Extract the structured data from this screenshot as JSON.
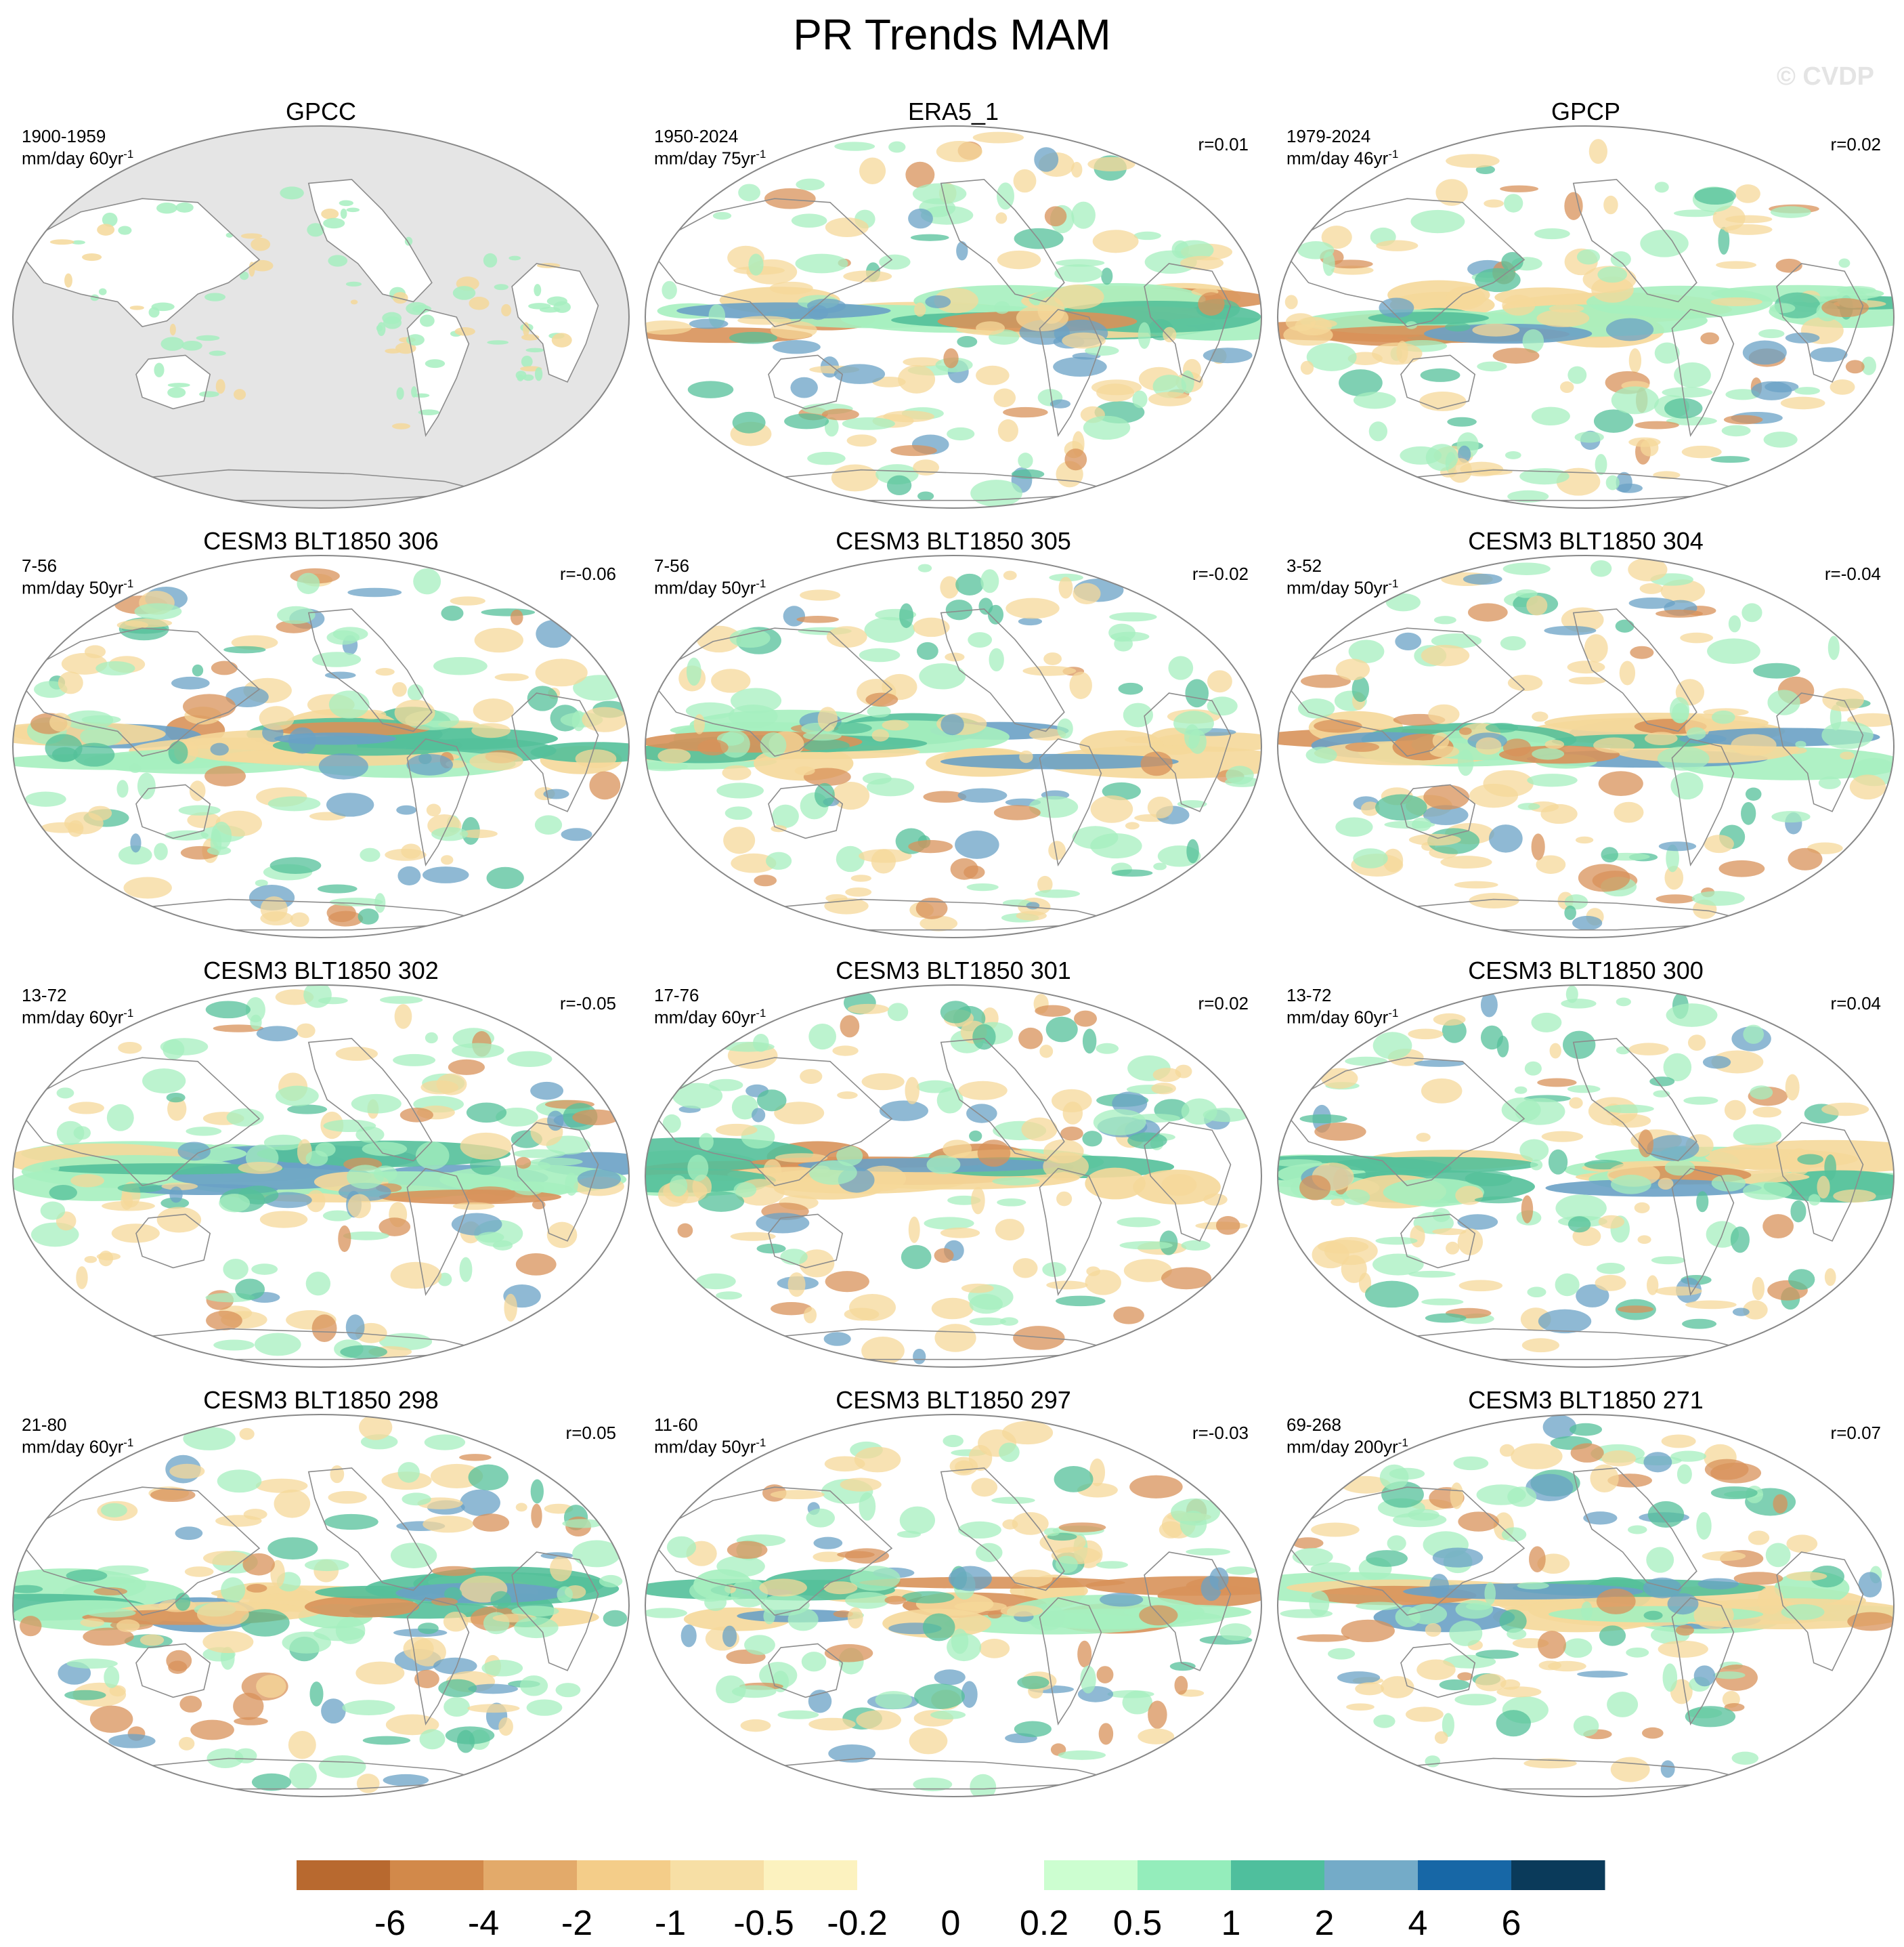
{
  "title": "PR Trends MAM",
  "watermark": "© CVDP",
  "colors": {
    "ocean_masked": "#e5e5e5",
    "coast": "#8c8c8c",
    "border": "#888888",
    "brown": "#d8925a",
    "tan": "#f5d89a",
    "green": "#a6efbf",
    "teal": "#54c09a",
    "blue": "#6aa1c5",
    "darkblue": "#0c62a6"
  },
  "colorbar": {
    "colors": [
      "#b8692f",
      "#d2894a",
      "#e3aa6a",
      "#f4cd89",
      "#f7dfa5",
      "#fcf2bf",
      "#ffffff",
      "#ffffff",
      "#ccfed0",
      "#94edbb",
      "#4fbf9d",
      "#74abc8",
      "#1767a6",
      "#0a3a5a"
    ],
    "labels": [
      "-6",
      "-4",
      "-2",
      "-1",
      "-0.5",
      "-0.2",
      "0",
      "0.2",
      "0.5",
      "1",
      "2",
      "4",
      "6"
    ]
  },
  "panels": [
    {
      "title": "GPCC",
      "period": "1900-1959",
      "units": "mm/day 60yr",
      "units_exp": "-1",
      "corr": "",
      "masked": true,
      "seed": 3
    },
    {
      "title": "ERA5_1",
      "period": "1950-2024",
      "units": "mm/day 75yr",
      "units_exp": "-1",
      "corr": "r=0.01",
      "masked": false,
      "seed": 11
    },
    {
      "title": "GPCP",
      "period": "1979-2024",
      "units": "mm/day 46yr",
      "units_exp": "-1",
      "corr": "r=0.02",
      "masked": false,
      "seed": 19
    },
    {
      "title": "CESM3 BLT1850 306",
      "period": "7-56",
      "units": "mm/day 50yr",
      "units_exp": "-1",
      "corr": "r=-0.06",
      "masked": false,
      "seed": 27
    },
    {
      "title": "CESM3 BLT1850 305",
      "period": "7-56",
      "units": "mm/day 50yr",
      "units_exp": "-1",
      "corr": "r=-0.02",
      "masked": false,
      "seed": 35
    },
    {
      "title": "CESM3 BLT1850 304",
      "period": "3-52",
      "units": "mm/day 50yr",
      "units_exp": "-1",
      "corr": "r=-0.04",
      "masked": false,
      "seed": 43
    },
    {
      "title": "CESM3 BLT1850 302",
      "period": "13-72",
      "units": "mm/day 60yr",
      "units_exp": "-1",
      "corr": "r=-0.05",
      "masked": false,
      "seed": 51
    },
    {
      "title": "CESM3 BLT1850 301",
      "period": "17-76",
      "units": "mm/day 60yr",
      "units_exp": "-1",
      "corr": "r=0.02",
      "masked": false,
      "seed": 59
    },
    {
      "title": "CESM3 BLT1850 300",
      "period": "13-72",
      "units": "mm/day 60yr",
      "units_exp": "-1",
      "corr": "r=0.04",
      "masked": false,
      "seed": 67
    },
    {
      "title": "CESM3 BLT1850 298",
      "period": "21-80",
      "units": "mm/day 60yr",
      "units_exp": "-1",
      "corr": "r=0.05",
      "masked": false,
      "seed": 75
    },
    {
      "title": "CESM3 BLT1850 297",
      "period": "11-60",
      "units": "mm/day 50yr",
      "units_exp": "-1",
      "corr": "r=-0.03",
      "masked": false,
      "seed": 83
    },
    {
      "title": "CESM3 BLT1850 271",
      "period": "69-268",
      "units": "mm/day 200yr",
      "units_exp": "-1",
      "corr": "r=0.07",
      "masked": false,
      "seed": 91
    }
  ]
}
